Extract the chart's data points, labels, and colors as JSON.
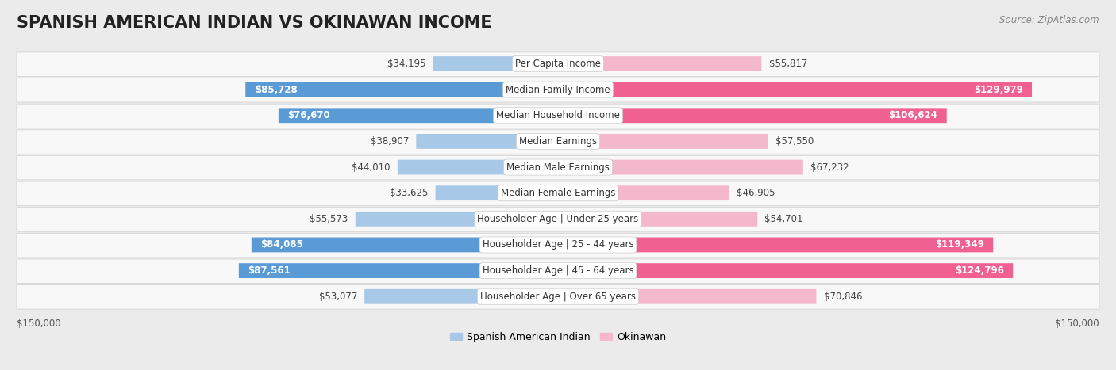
{
  "title": "SPANISH AMERICAN INDIAN VS OKINAWAN INCOME",
  "source": "Source: ZipAtlas.com",
  "categories": [
    "Per Capita Income",
    "Median Family Income",
    "Median Household Income",
    "Median Earnings",
    "Median Male Earnings",
    "Median Female Earnings",
    "Householder Age | Under 25 years",
    "Householder Age | 25 - 44 years",
    "Householder Age | 45 - 64 years",
    "Householder Age | Over 65 years"
  ],
  "spanish_values": [
    34195,
    85728,
    76670,
    38907,
    44010,
    33625,
    55573,
    84085,
    87561,
    53077
  ],
  "okinawan_values": [
    55817,
    129979,
    106624,
    57550,
    67232,
    46905,
    54701,
    119349,
    124796,
    70846
  ],
  "spanish_labels": [
    "$34,195",
    "$85,728",
    "$76,670",
    "$38,907",
    "$44,010",
    "$33,625",
    "$55,573",
    "$84,085",
    "$87,561",
    "$53,077"
  ],
  "okinawan_labels": [
    "$55,817",
    "$129,979",
    "$106,624",
    "$57,550",
    "$67,232",
    "$46,905",
    "$54,701",
    "$119,349",
    "$124,796",
    "$70,846"
  ],
  "max_value": 150000,
  "spanish_color_light": "#a8c8e8",
  "spanish_color_dark": "#5b9bd5",
  "okinawan_color_light": "#f4b8cc",
  "okinawan_color_dark": "#f06090",
  "bg_color": "#ebebeb",
  "row_bg_color": "#f8f8f8",
  "legend_spanish": "Spanish American Indian",
  "legend_okinawan": "Okinawan",
  "xlabel_left": "$150,000",
  "xlabel_right": "$150,000",
  "title_fontsize": 15,
  "label_fontsize": 8.5,
  "category_fontsize": 8.5,
  "inside_threshold_spanish": 60000,
  "inside_threshold_okinawan": 80000,
  "dark_threshold_spanish": 70000,
  "dark_threshold_okinawan": 80000
}
